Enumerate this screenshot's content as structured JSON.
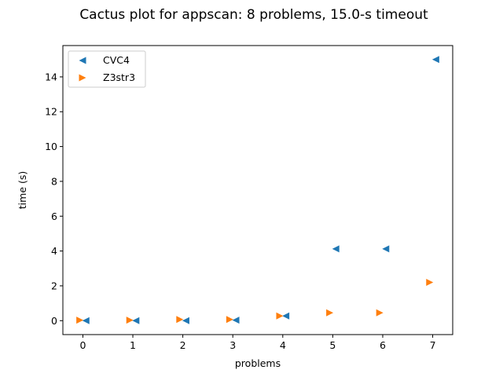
{
  "chart_data": {
    "type": "scatter",
    "title": "Cactus plot for appscan: 8 problems, 15.0-s timeout",
    "xlabel": "problems",
    "ylabel": "time (s)",
    "xlim": [
      -0.4,
      7.4
    ],
    "ylim": [
      -0.8,
      15.8
    ],
    "xticks": [
      0,
      1,
      2,
      3,
      4,
      5,
      6,
      7
    ],
    "yticks": [
      0,
      2,
      4,
      6,
      8,
      10,
      12,
      14
    ],
    "grid": false,
    "legend_position": "top-left",
    "series": [
      {
        "name": "CVC4",
        "marker": "triangle-left",
        "color": "#1f77b4",
        "x": [
          0,
          1,
          2,
          3,
          4,
          5,
          6,
          7
        ],
        "y": [
          0.0,
          0.0,
          0.0,
          0.03,
          0.27,
          4.12,
          4.12,
          15.0
        ]
      },
      {
        "name": "Z3str3",
        "marker": "triangle-right",
        "color": "#ff7f0e",
        "x": [
          0,
          1,
          2,
          3,
          4,
          5,
          6,
          7
        ],
        "y": [
          0.03,
          0.03,
          0.07,
          0.07,
          0.27,
          0.45,
          0.45,
          2.2
        ]
      }
    ]
  }
}
